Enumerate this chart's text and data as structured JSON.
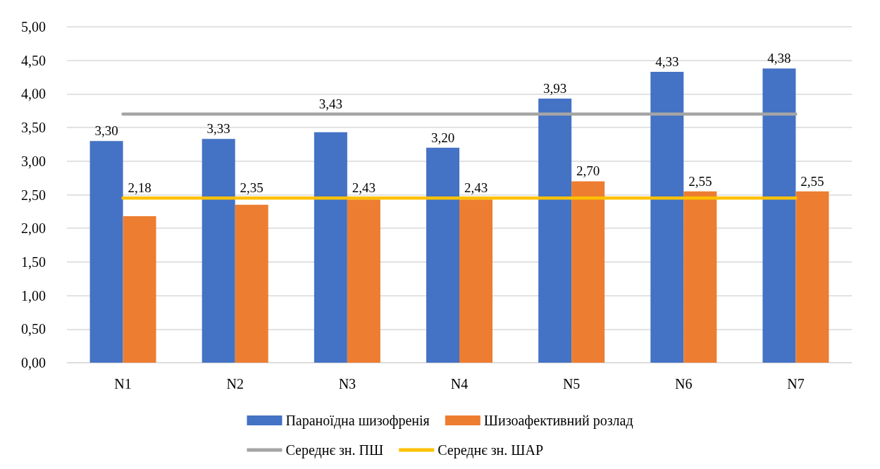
{
  "chart_data": {
    "type": "bar",
    "categories": [
      "N1",
      "N2",
      "N3",
      "N4",
      "N5",
      "N6",
      "N7"
    ],
    "series": [
      {
        "name": "Параноїдна шизофренія",
        "color": "#4472c4",
        "values": [
          3.3,
          3.33,
          3.43,
          3.2,
          3.93,
          4.33,
          4.38
        ],
        "value_labels": [
          "3,30",
          "3,33",
          "3,43",
          "3,20",
          "3,93",
          "4,33",
          "4,38"
        ]
      },
      {
        "name": "Шизоафективний розлад",
        "color": "#ed7d31",
        "values": [
          2.18,
          2.35,
          2.43,
          2.43,
          2.7,
          2.55,
          2.55
        ],
        "value_labels": [
          "2,18",
          "2,35",
          "2,43",
          "2,43",
          "2,70",
          "2,55",
          "2,55"
        ]
      },
      {
        "name": "Середнє зн. ПШ",
        "type": "line",
        "color": "#a5a5a5",
        "values": [
          3.7,
          3.7,
          3.7,
          3.7,
          3.7,
          3.7,
          3.7
        ]
      },
      {
        "name": "Середнє зн. ШАР",
        "type": "line",
        "color": "#ffc000",
        "values": [
          2.45,
          2.45,
          2.45,
          2.45,
          2.45,
          2.45,
          2.45
        ]
      }
    ],
    "ylim": [
      0,
      5
    ],
    "yticks": [
      {
        "value": 0,
        "label": "0,00"
      },
      {
        "value": 0.5,
        "label": "0,50"
      },
      {
        "value": 1,
        "label": "1,00"
      },
      {
        "value": 1.5,
        "label": "1,50"
      },
      {
        "value": 2,
        "label": "2,00"
      },
      {
        "value": 2.5,
        "label": "2,50"
      },
      {
        "value": 3,
        "label": "3,00"
      },
      {
        "value": 3.5,
        "label": "3,50"
      },
      {
        "value": 4,
        "label": "4,00"
      },
      {
        "value": 4.5,
        "label": "4,50"
      },
      {
        "value": 5,
        "label": "5,00"
      }
    ],
    "grid": "y",
    "legend": "bottom",
    "marker": "none",
    "line_style": "solid"
  }
}
